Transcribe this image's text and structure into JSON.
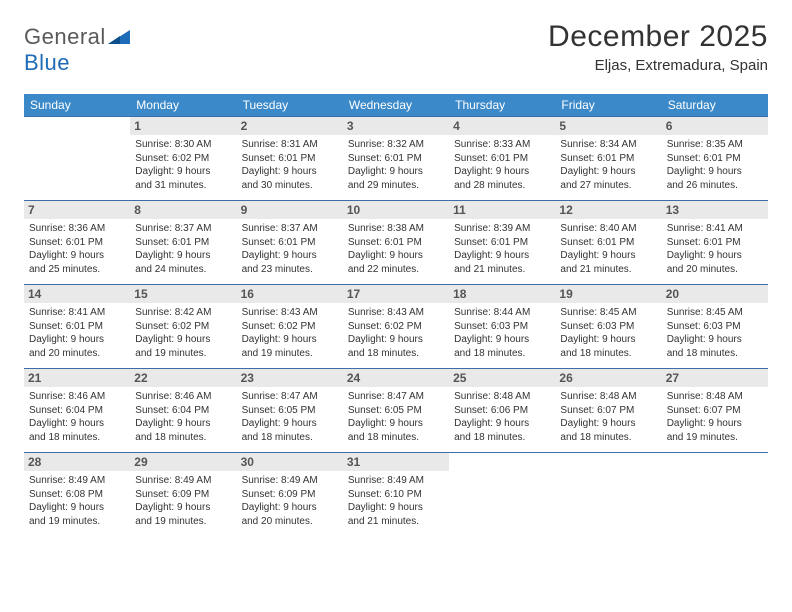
{
  "logo": {
    "word1": "General",
    "word2": "Blue"
  },
  "title": "December 2025",
  "location": "Eljas, Extremadura, Spain",
  "colors": {
    "header_bg": "#3b89c9",
    "row_border": "#3b6fa3",
    "daynum_bg": "#e9e9e9",
    "logo_tri": "#1e6bb8"
  },
  "weekdays": [
    "Sunday",
    "Monday",
    "Tuesday",
    "Wednesday",
    "Thursday",
    "Friday",
    "Saturday"
  ],
  "weeks": [
    [
      null,
      {
        "n": "1",
        "sr": "Sunrise: 8:30 AM",
        "ss": "Sunset: 6:02 PM",
        "d1": "Daylight: 9 hours",
        "d2": "and 31 minutes."
      },
      {
        "n": "2",
        "sr": "Sunrise: 8:31 AM",
        "ss": "Sunset: 6:01 PM",
        "d1": "Daylight: 9 hours",
        "d2": "and 30 minutes."
      },
      {
        "n": "3",
        "sr": "Sunrise: 8:32 AM",
        "ss": "Sunset: 6:01 PM",
        "d1": "Daylight: 9 hours",
        "d2": "and 29 minutes."
      },
      {
        "n": "4",
        "sr": "Sunrise: 8:33 AM",
        "ss": "Sunset: 6:01 PM",
        "d1": "Daylight: 9 hours",
        "d2": "and 28 minutes."
      },
      {
        "n": "5",
        "sr": "Sunrise: 8:34 AM",
        "ss": "Sunset: 6:01 PM",
        "d1": "Daylight: 9 hours",
        "d2": "and 27 minutes."
      },
      {
        "n": "6",
        "sr": "Sunrise: 8:35 AM",
        "ss": "Sunset: 6:01 PM",
        "d1": "Daylight: 9 hours",
        "d2": "and 26 minutes."
      }
    ],
    [
      {
        "n": "7",
        "sr": "Sunrise: 8:36 AM",
        "ss": "Sunset: 6:01 PM",
        "d1": "Daylight: 9 hours",
        "d2": "and 25 minutes."
      },
      {
        "n": "8",
        "sr": "Sunrise: 8:37 AM",
        "ss": "Sunset: 6:01 PM",
        "d1": "Daylight: 9 hours",
        "d2": "and 24 minutes."
      },
      {
        "n": "9",
        "sr": "Sunrise: 8:37 AM",
        "ss": "Sunset: 6:01 PM",
        "d1": "Daylight: 9 hours",
        "d2": "and 23 minutes."
      },
      {
        "n": "10",
        "sr": "Sunrise: 8:38 AM",
        "ss": "Sunset: 6:01 PM",
        "d1": "Daylight: 9 hours",
        "d2": "and 22 minutes."
      },
      {
        "n": "11",
        "sr": "Sunrise: 8:39 AM",
        "ss": "Sunset: 6:01 PM",
        "d1": "Daylight: 9 hours",
        "d2": "and 21 minutes."
      },
      {
        "n": "12",
        "sr": "Sunrise: 8:40 AM",
        "ss": "Sunset: 6:01 PM",
        "d1": "Daylight: 9 hours",
        "d2": "and 21 minutes."
      },
      {
        "n": "13",
        "sr": "Sunrise: 8:41 AM",
        "ss": "Sunset: 6:01 PM",
        "d1": "Daylight: 9 hours",
        "d2": "and 20 minutes."
      }
    ],
    [
      {
        "n": "14",
        "sr": "Sunrise: 8:41 AM",
        "ss": "Sunset: 6:01 PM",
        "d1": "Daylight: 9 hours",
        "d2": "and 20 minutes."
      },
      {
        "n": "15",
        "sr": "Sunrise: 8:42 AM",
        "ss": "Sunset: 6:02 PM",
        "d1": "Daylight: 9 hours",
        "d2": "and 19 minutes."
      },
      {
        "n": "16",
        "sr": "Sunrise: 8:43 AM",
        "ss": "Sunset: 6:02 PM",
        "d1": "Daylight: 9 hours",
        "d2": "and 19 minutes."
      },
      {
        "n": "17",
        "sr": "Sunrise: 8:43 AM",
        "ss": "Sunset: 6:02 PM",
        "d1": "Daylight: 9 hours",
        "d2": "and 18 minutes."
      },
      {
        "n": "18",
        "sr": "Sunrise: 8:44 AM",
        "ss": "Sunset: 6:03 PM",
        "d1": "Daylight: 9 hours",
        "d2": "and 18 minutes."
      },
      {
        "n": "19",
        "sr": "Sunrise: 8:45 AM",
        "ss": "Sunset: 6:03 PM",
        "d1": "Daylight: 9 hours",
        "d2": "and 18 minutes."
      },
      {
        "n": "20",
        "sr": "Sunrise: 8:45 AM",
        "ss": "Sunset: 6:03 PM",
        "d1": "Daylight: 9 hours",
        "d2": "and 18 minutes."
      }
    ],
    [
      {
        "n": "21",
        "sr": "Sunrise: 8:46 AM",
        "ss": "Sunset: 6:04 PM",
        "d1": "Daylight: 9 hours",
        "d2": "and 18 minutes."
      },
      {
        "n": "22",
        "sr": "Sunrise: 8:46 AM",
        "ss": "Sunset: 6:04 PM",
        "d1": "Daylight: 9 hours",
        "d2": "and 18 minutes."
      },
      {
        "n": "23",
        "sr": "Sunrise: 8:47 AM",
        "ss": "Sunset: 6:05 PM",
        "d1": "Daylight: 9 hours",
        "d2": "and 18 minutes."
      },
      {
        "n": "24",
        "sr": "Sunrise: 8:47 AM",
        "ss": "Sunset: 6:05 PM",
        "d1": "Daylight: 9 hours",
        "d2": "and 18 minutes."
      },
      {
        "n": "25",
        "sr": "Sunrise: 8:48 AM",
        "ss": "Sunset: 6:06 PM",
        "d1": "Daylight: 9 hours",
        "d2": "and 18 minutes."
      },
      {
        "n": "26",
        "sr": "Sunrise: 8:48 AM",
        "ss": "Sunset: 6:07 PM",
        "d1": "Daylight: 9 hours",
        "d2": "and 18 minutes."
      },
      {
        "n": "27",
        "sr": "Sunrise: 8:48 AM",
        "ss": "Sunset: 6:07 PM",
        "d1": "Daylight: 9 hours",
        "d2": "and 19 minutes."
      }
    ],
    [
      {
        "n": "28",
        "sr": "Sunrise: 8:49 AM",
        "ss": "Sunset: 6:08 PM",
        "d1": "Daylight: 9 hours",
        "d2": "and 19 minutes."
      },
      {
        "n": "29",
        "sr": "Sunrise: 8:49 AM",
        "ss": "Sunset: 6:09 PM",
        "d1": "Daylight: 9 hours",
        "d2": "and 19 minutes."
      },
      {
        "n": "30",
        "sr": "Sunrise: 8:49 AM",
        "ss": "Sunset: 6:09 PM",
        "d1": "Daylight: 9 hours",
        "d2": "and 20 minutes."
      },
      {
        "n": "31",
        "sr": "Sunrise: 8:49 AM",
        "ss": "Sunset: 6:10 PM",
        "d1": "Daylight: 9 hours",
        "d2": "and 21 minutes."
      },
      null,
      null,
      null
    ]
  ]
}
